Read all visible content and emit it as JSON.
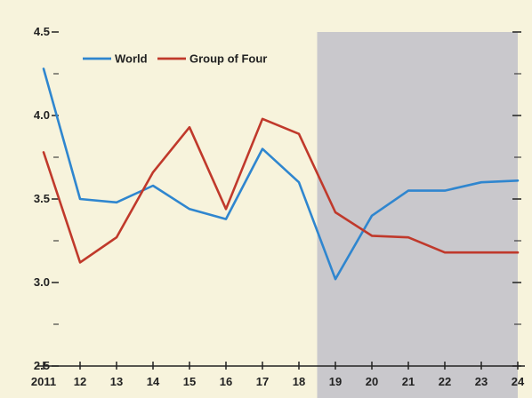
{
  "chart_data": {
    "type": "line",
    "title": "",
    "xlabel": "",
    "ylabel": "",
    "x": [
      "2011",
      "12",
      "13",
      "14",
      "15",
      "16",
      "17",
      "18",
      "19",
      "20",
      "21",
      "22",
      "23",
      "24"
    ],
    "ylim": [
      2.5,
      4.5
    ],
    "yticks": [
      "2.5",
      "3.0",
      "3.5",
      "4.0",
      "4.5"
    ],
    "yticks_values": [
      2.5,
      3.0,
      3.5,
      4.0,
      4.5
    ],
    "grid": false,
    "legend": "top-left",
    "projection_shading": {
      "from_x": "18.5",
      "to_x": "24",
      "color": "#c9c8cc"
    },
    "series": [
      {
        "name": "World",
        "color": "#2f86cf",
        "values": [
          4.28,
          3.5,
          3.48,
          3.58,
          3.44,
          3.38,
          3.8,
          3.6,
          3.02,
          3.4,
          3.55,
          3.55,
          3.6,
          3.61
        ]
      },
      {
        "name": "Group of Four",
        "color": "#c0392b",
        "values": [
          3.78,
          3.12,
          3.27,
          3.66,
          3.93,
          3.44,
          3.98,
          3.89,
          3.42,
          3.28,
          3.27,
          3.18,
          3.18,
          3.18
        ]
      }
    ]
  }
}
